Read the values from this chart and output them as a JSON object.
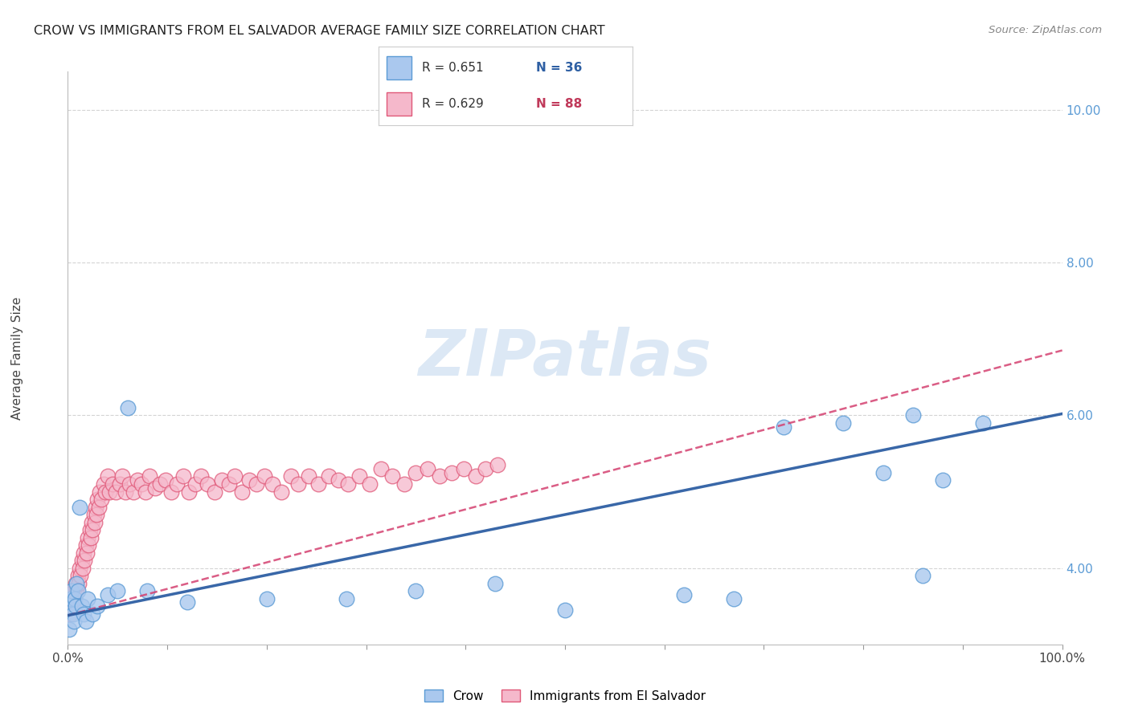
{
  "title": "CROW VS IMMIGRANTS FROM EL SALVADOR AVERAGE FAMILY SIZE CORRELATION CHART",
  "source": "Source: ZipAtlas.com",
  "ylabel": "Average Family Size",
  "xlim": [
    0,
    1.0
  ],
  "ylim": [
    3.0,
    10.5
  ],
  "xtick_positions": [
    0.0,
    0.1,
    0.2,
    0.3,
    0.4,
    0.5,
    0.6,
    0.7,
    0.8,
    0.9,
    1.0
  ],
  "xticklabels": [
    "0.0%",
    "",
    "",
    "",
    "",
    "",
    "",
    "",
    "",
    "",
    "100.0%"
  ],
  "ytick_right": [
    4.0,
    6.0,
    8.0,
    10.0
  ],
  "ytick_labels": [
    "4.00",
    "6.00",
    "8.00",
    "10.00"
  ],
  "crow_color": "#aac8ee",
  "crow_edge_color": "#5b9bd5",
  "immigrant_color": "#f5b8cb",
  "immigrant_edge_color": "#e05878",
  "crow_trendline_color": "#2e5fa3",
  "immigrant_trendline_color": "#d44070",
  "legend_r_color": "#333333",
  "legend_n_color": "#2e5fa3",
  "legend_n2_color": "#c0395a",
  "ytick_color": "#5b9bd5",
  "grid_color": "#d0d0d0",
  "background_color": "#ffffff",
  "watermark": "ZIPatlas",
  "watermark_color": "#dce8f5",
  "crow_trendline_x": [
    0.0,
    1.0
  ],
  "crow_trendline_y": [
    3.38,
    6.02
  ],
  "immigrant_trendline_x": [
    0.0,
    1.0
  ],
  "immigrant_trendline_y": [
    3.38,
    6.85
  ],
  "crow_x": [
    0.001,
    0.002,
    0.003,
    0.004,
    0.005,
    0.006,
    0.007,
    0.008,
    0.009,
    0.01,
    0.012,
    0.014,
    0.016,
    0.018,
    0.02,
    0.025,
    0.03,
    0.04,
    0.05,
    0.06,
    0.08,
    0.12,
    0.2,
    0.28,
    0.35,
    0.43,
    0.5,
    0.62,
    0.67,
    0.72,
    0.78,
    0.82,
    0.85,
    0.88,
    0.92,
    0.86
  ],
  "crow_y": [
    3.2,
    3.5,
    3.6,
    3.7,
    3.4,
    3.3,
    3.6,
    3.5,
    3.8,
    3.7,
    4.8,
    3.5,
    3.4,
    3.3,
    3.6,
    3.4,
    3.5,
    3.65,
    3.7,
    6.1,
    3.7,
    3.55,
    3.6,
    3.6,
    3.7,
    3.8,
    3.45,
    3.65,
    3.6,
    5.85,
    5.9,
    5.25,
    6.0,
    5.15,
    5.9,
    3.9
  ],
  "imm_x": [
    0.002,
    0.003,
    0.004,
    0.005,
    0.006,
    0.007,
    0.008,
    0.009,
    0.01,
    0.011,
    0.012,
    0.013,
    0.014,
    0.015,
    0.016,
    0.017,
    0.018,
    0.019,
    0.02,
    0.021,
    0.022,
    0.023,
    0.024,
    0.025,
    0.026,
    0.027,
    0.028,
    0.029,
    0.03,
    0.031,
    0.032,
    0.034,
    0.036,
    0.038,
    0.04,
    0.042,
    0.045,
    0.048,
    0.052,
    0.055,
    0.058,
    0.062,
    0.066,
    0.07,
    0.074,
    0.078,
    0.082,
    0.088,
    0.093,
    0.098,
    0.104,
    0.11,
    0.116,
    0.122,
    0.128,
    0.134,
    0.14,
    0.148,
    0.155,
    0.162,
    0.168,
    0.175,
    0.182,
    0.19,
    0.198,
    0.206,
    0.215,
    0.224,
    0.232,
    0.242,
    0.252,
    0.262,
    0.272,
    0.282,
    0.293,
    0.304,
    0.315,
    0.326,
    0.338,
    0.35,
    0.362,
    0.374,
    0.386,
    0.398,
    0.41,
    0.42,
    0.432
  ],
  "imm_y": [
    3.4,
    3.5,
    3.6,
    3.5,
    3.7,
    3.6,
    3.8,
    3.7,
    3.9,
    3.8,
    4.0,
    3.9,
    4.1,
    4.0,
    4.2,
    4.1,
    4.3,
    4.2,
    4.4,
    4.3,
    4.5,
    4.4,
    4.6,
    4.5,
    4.7,
    4.6,
    4.8,
    4.7,
    4.9,
    4.8,
    5.0,
    4.9,
    5.1,
    5.0,
    5.2,
    5.0,
    5.1,
    5.0,
    5.1,
    5.2,
    5.0,
    5.1,
    5.0,
    5.15,
    5.1,
    5.0,
    5.2,
    5.05,
    5.1,
    5.15,
    5.0,
    5.1,
    5.2,
    5.0,
    5.1,
    5.2,
    5.1,
    5.0,
    5.15,
    5.1,
    5.2,
    5.0,
    5.15,
    5.1,
    5.2,
    5.1,
    5.0,
    5.2,
    5.1,
    5.2,
    5.1,
    5.2,
    5.15,
    5.1,
    5.2,
    5.1,
    5.3,
    5.2,
    5.1,
    5.25,
    5.3,
    5.2,
    5.25,
    5.3,
    5.2,
    5.3,
    5.35
  ],
  "bottom_legend_crow": "Crow",
  "bottom_legend_immigrant": "Immigrants from El Salvador"
}
